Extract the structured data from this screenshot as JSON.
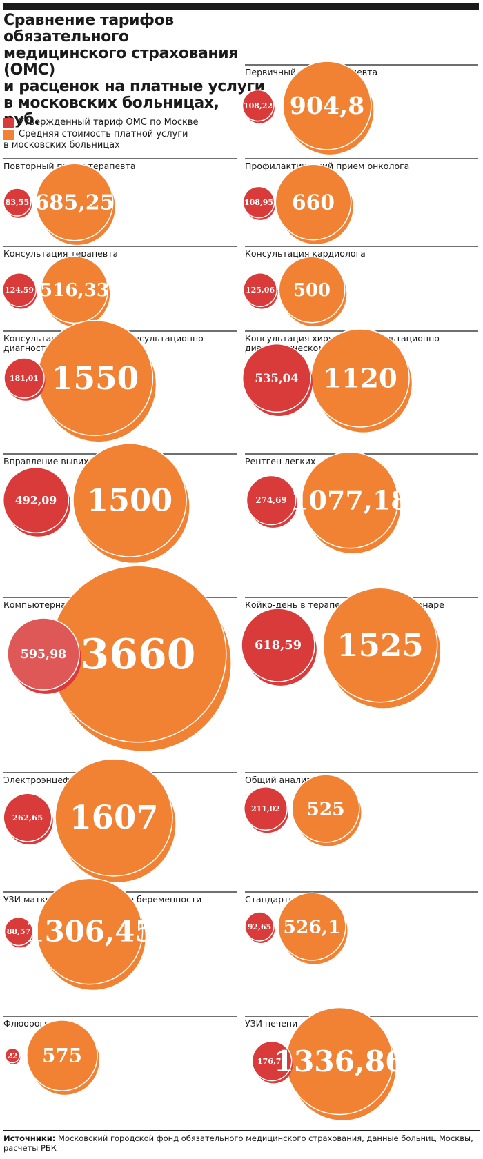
{
  "title_lines": [
    "Сравнение тарифов обязательного",
    "медицинского страхования (ОМС)",
    "и расценок на платные услуги",
    "в московских больницах,",
    "руб."
  ],
  "legend": {
    "oms": "Утвержденный тариф ОМС по Москве",
    "paid_line1": "Средняя стоимость платной услуги",
    "paid_line2": "в московских больницах"
  },
  "colors": {
    "oms": "#d93b3b",
    "paid": "#f28233",
    "overlap": "#c41e14"
  },
  "chart_data": {
    "type": "bubble",
    "series": [
      {
        "name": "Утвержденный тариф ОМС по Москве",
        "key": "oms"
      },
      {
        "name": "Средняя стоимость платной услуги в московских больницах",
        "key": "paid"
      }
    ],
    "items": [
      {
        "label": [
          "Первичный прием терапевта"
        ],
        "oms": 108.22,
        "paid": 904.8,
        "oms_text": "108,22",
        "paid_text": "904,8"
      },
      {
        "label": [
          "Повторный прием терапевта"
        ],
        "oms": 83.55,
        "paid": 685.25,
        "oms_text": "83,55",
        "paid_text": "685,25"
      },
      {
        "label": [
          "Профилактический прием онколога"
        ],
        "oms": 108.95,
        "paid": 660,
        "oms_text": "108,95",
        "paid_text": "660"
      },
      {
        "label": [
          "Консультация терапевта"
        ],
        "oms": 124.59,
        "paid": 516.33,
        "oms_text": "124,59",
        "paid_text": "516,33"
      },
      {
        "label": [
          "Консультация кардиолога"
        ],
        "oms": 125.06,
        "paid": 500,
        "oms_text": "125,06",
        "paid_text": "500"
      },
      {
        "label": [
          "Консультация онколога в консультационно-",
          "диагностическом центре"
        ],
        "oms": 181.01,
        "paid": 1550,
        "oms_text": "181,01",
        "paid_text": "1550"
      },
      {
        "label": [
          "Консультация хирурга в консультационно-",
          "диагностическом центре"
        ],
        "oms": 535.04,
        "paid": 1120,
        "oms_text": "535,04",
        "paid_text": "1120"
      },
      {
        "label": [
          "Вправление вывихов суставов"
        ],
        "oms": 492.09,
        "paid": 1500,
        "oms_text": "492,09",
        "paid_text": "1500"
      },
      {
        "label": [
          "Рентген легких"
        ],
        "oms": 274.69,
        "paid": 1077.18,
        "oms_text": "274,69",
        "paid_text": "1077,18"
      },
      {
        "label": [
          "Компьютерная томография головного мозга"
        ],
        "oms": 595.98,
        "paid": 3660,
        "oms_text": "595,98",
        "paid_text": "3660"
      },
      {
        "label": [
          "Койко-день в терапевтическом стационаре"
        ],
        "oms": 618.59,
        "paid": 1525,
        "oms_text": "618,59",
        "paid_text": "1525"
      },
      {
        "label": [
          "Электроэнцефалография"
        ],
        "oms": 262.65,
        "paid": 1607,
        "oms_text": "262,65",
        "paid_text": "1607"
      },
      {
        "label": [
          "Общий анализ крови"
        ],
        "oms": 211.02,
        "paid": 525,
        "oms_text": "211,02",
        "paid_text": "525"
      },
      {
        "label": [
          "УЗИ матки на 1-м триместре беременности"
        ],
        "oms": 88.57,
        "paid": 1306.45,
        "oms_text": "88,57",
        "paid_text": "1306,45"
      },
      {
        "label": [
          "Стандартная ЭКГ"
        ],
        "oms": 92.65,
        "paid": 526.1,
        "oms_text": "92,65",
        "paid_text": "526,1"
      },
      {
        "label": [
          "Флюорография"
        ],
        "oms": 22,
        "paid": 575,
        "oms_text": "22",
        "paid_text": "575"
      },
      {
        "label": [
          "УЗИ печени"
        ],
        "oms": 176.76,
        "paid": 1336.86,
        "oms_text": "176,76",
        "paid_text": "1336,86"
      }
    ]
  },
  "footer": {
    "source_label": "Источники:",
    "source_text": " Московский городской фонд обязательного медицинского страхования, данные больниц Москвы,",
    "source_text2": "расчеты РБК"
  }
}
